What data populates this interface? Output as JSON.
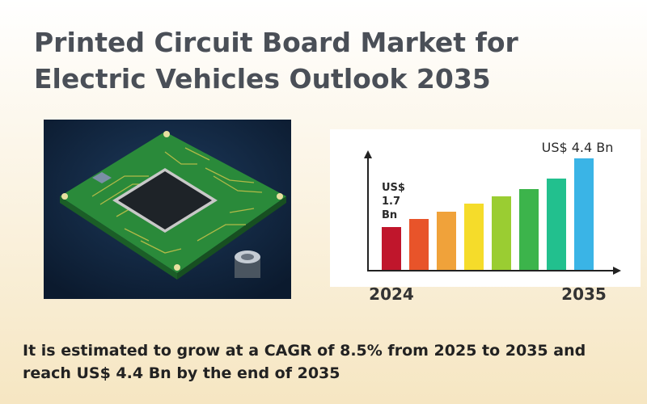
{
  "title": "Printed Circuit Board Market for Electric Vehicles Outlook 2035",
  "chart_data": {
    "type": "bar",
    "categories": [
      "2024",
      null,
      null,
      null,
      null,
      null,
      null,
      "2035"
    ],
    "values": [
      1.7,
      2.0,
      2.3,
      2.6,
      2.9,
      3.2,
      3.6,
      4.4
    ],
    "value_labels": [
      "US$ 1.7 Bn",
      null,
      null,
      null,
      null,
      null,
      null,
      "US$ 4.4 Bn"
    ],
    "colors": [
      "#c0162c",
      "#e8542a",
      "#f0a23a",
      "#f5dc2a",
      "#9acd32",
      "#3cb44b",
      "#22c08e",
      "#3ab4e6"
    ]
  },
  "summary": "It is estimated to grow at a CAGR of 8.5% from 2025 to 2035 and reach US$ 4.4 Bn by the end of 2035"
}
